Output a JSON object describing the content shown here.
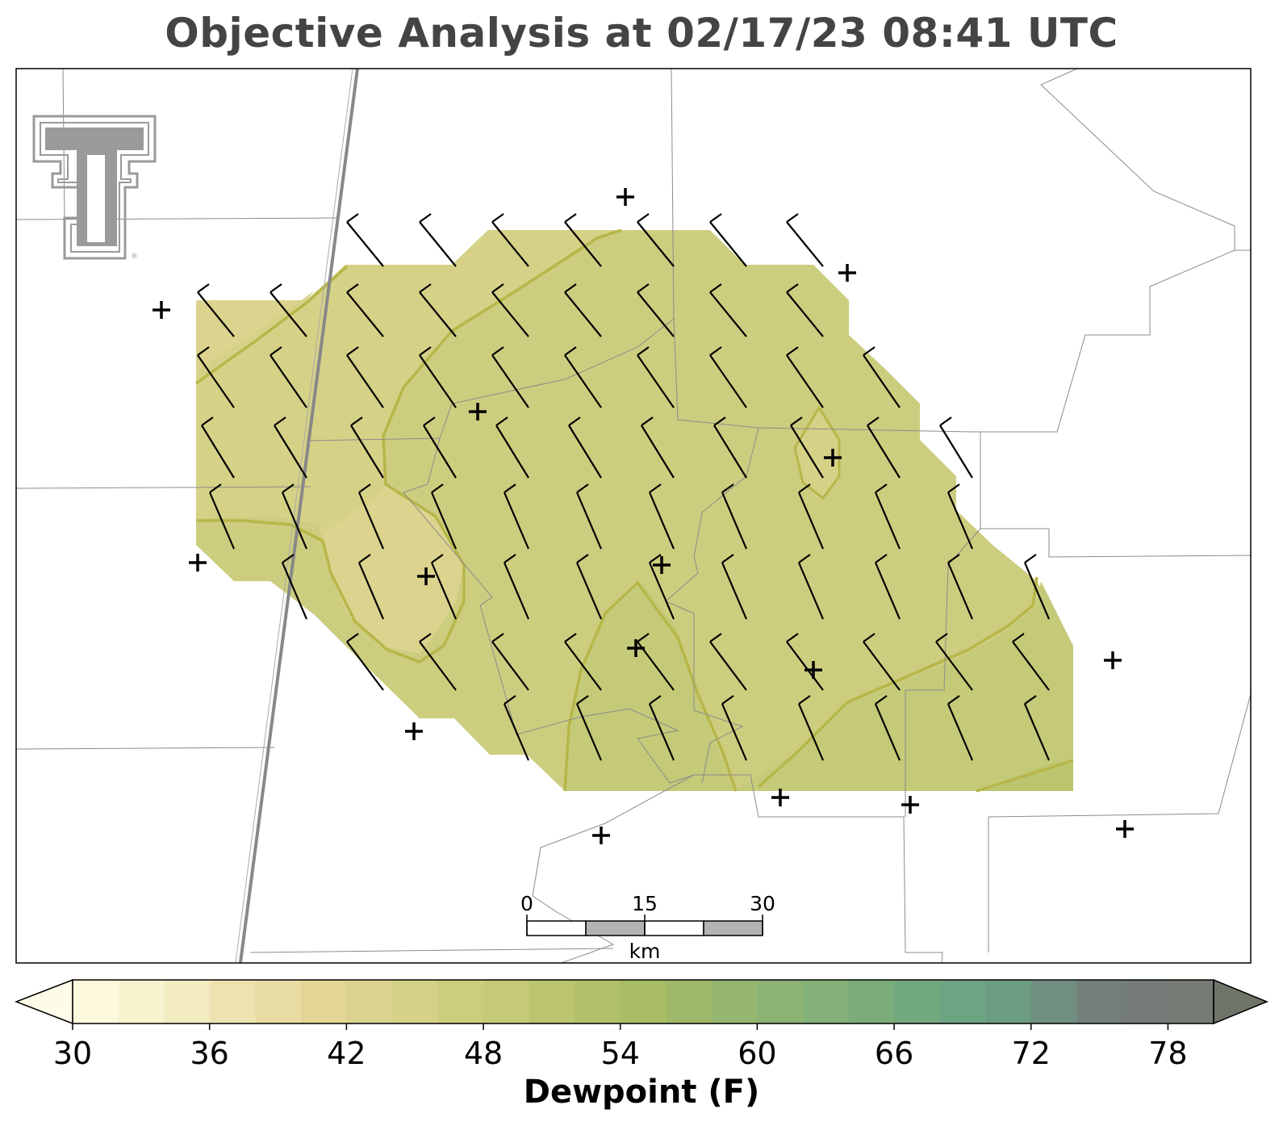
{
  "title": "Objective Analysis at 02/17/23 08:41 UTC",
  "logo": {
    "name": "texas-tech-double-t-logo",
    "color": "#9a9a9a"
  },
  "scale_bar": {
    "labels": [
      "0",
      "15",
      "30"
    ],
    "unit": "km"
  },
  "colorbar": {
    "label": "Dewpoint (F)",
    "ticks": [
      "30",
      "36",
      "42",
      "48",
      "54",
      "60",
      "66",
      "72",
      "78"
    ],
    "min": 30,
    "max": 80,
    "step": 2,
    "colors": [
      "#fdf9dc",
      "#f8f3cf",
      "#f3ebc1",
      "#eee3b0",
      "#e9dca2",
      "#e3d596",
      "#dcd38e",
      "#d5d187",
      "#cdcd7f",
      "#c4ca77",
      "#bac56e",
      "#b0c169",
      "#a8bd66",
      "#9fb96a",
      "#95b570",
      "#8db374",
      "#84b177",
      "#7bad7a",
      "#73a97e",
      "#6da481",
      "#6c9c82",
      "#708f80",
      "#737f7a",
      "#757b77",
      "#767b74"
    ],
    "under_color": "#fefce8",
    "over_color": "#6f7468"
  },
  "map_data": {
    "field": "Dewpoint (F)",
    "contour_levels": [
      44,
      46,
      48
    ],
    "fill_colors": {
      "lt44": "#dcd38e",
      "44_46": "#d5d187",
      "46_48": "#cdcd7f",
      "48_50": "#c4ca77"
    },
    "contour_color": "#b7b649",
    "stations": 16,
    "wind_barbs": "grid of northwesterly to north-northwesterly winds, ~10 kt (full barbs) with half barbs in the north"
  }
}
